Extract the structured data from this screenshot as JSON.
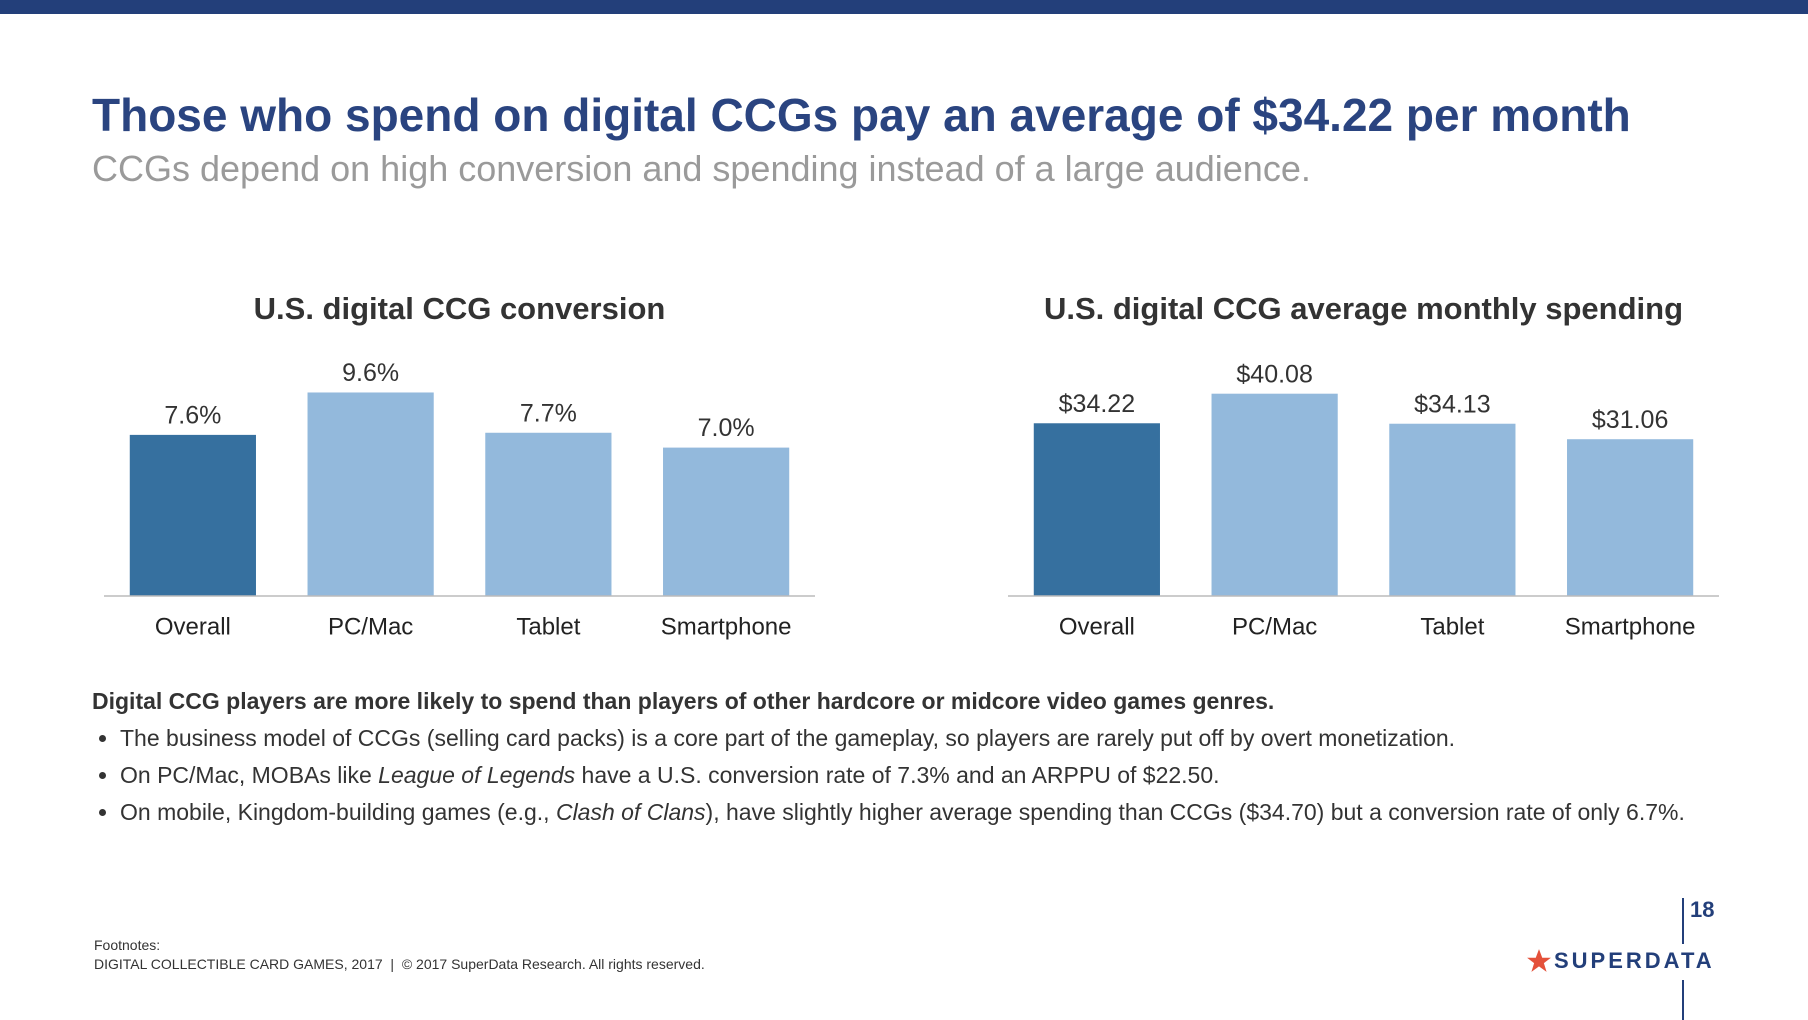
{
  "header": {
    "title": "Those who spend on digital CCGs pay an average of $34.22 per month",
    "subtitle": "CCGs depend on high conversion and spending instead of a large audience."
  },
  "chart_data": [
    {
      "type": "bar",
      "title": "U.S. digital CCG conversion",
      "categories": [
        "Overall",
        "PC/Mac",
        "Tablet",
        "Smartphone"
      ],
      "values": [
        7.6,
        9.6,
        7.7,
        7.0
      ],
      "value_labels": [
        "7.6%",
        "9.6%",
        "7.7%",
        "7.0%"
      ],
      "colors": [
        "#36709f",
        "#93b9dc",
        "#93b9dc",
        "#93b9dc"
      ],
      "ylim": [
        0,
        10
      ]
    },
    {
      "type": "bar",
      "title": "U.S. digital CCG average monthly spending",
      "categories": [
        "Overall",
        "PC/Mac",
        "Tablet",
        "Smartphone"
      ],
      "values": [
        34.22,
        40.08,
        34.13,
        31.06
      ],
      "value_labels": [
        "$34.22",
        "$40.08",
        "$34.13",
        "$31.06"
      ],
      "colors": [
        "#36709f",
        "#93b9dc",
        "#93b9dc",
        "#93b9dc"
      ],
      "ylim": [
        0,
        42
      ]
    }
  ],
  "notes": {
    "heading": "Digital CCG players are more likely to spend than players of other hardcore or midcore video games genres.",
    "bullets": [
      [
        {
          "text": "The business model of CCGs (selling card packs) is a core part of the gameplay, so players are rarely put off by overt monetization."
        }
      ],
      [
        {
          "text": "On PC/Mac, MOBAs like "
        },
        {
          "text": "League of Legends",
          "italic": true
        },
        {
          "text": " have a U.S. conversion rate of 7.3% and an ARPPU of $22.50."
        }
      ],
      [
        {
          "text": "On mobile, Kingdom-building games (e.g., "
        },
        {
          "text": "Clash of Clans",
          "italic": true
        },
        {
          "text": "), have slightly higher average spending than CCGs ($34.70) but a conversion rate of only 6.7%."
        }
      ]
    ]
  },
  "footer": {
    "label": "Footnotes:",
    "text": "DIGITAL COLLECTIBLE CARD GAMES, 2017  |  © 2017 SuperData Research. All rights reserved.",
    "page": "18",
    "logo": "SUPERDATA"
  }
}
